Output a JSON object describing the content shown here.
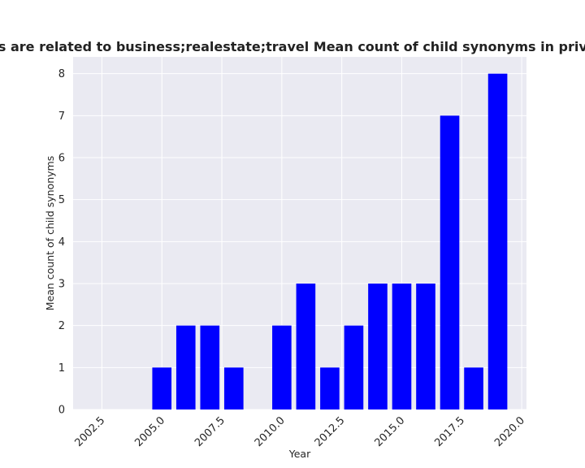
{
  "chart_data": {
    "type": "bar",
    "title": "Categories are related to business;realestate;travel Mean count of child synonyms in privacy policies",
    "xlabel": "Year",
    "ylabel": "Mean count of child synonyms",
    "x": [
      2005,
      2006,
      2007,
      2008,
      2010,
      2011,
      2012,
      2013,
      2014,
      2015,
      2016,
      2017,
      2018,
      2019
    ],
    "values": [
      1,
      2,
      2,
      1,
      2,
      3,
      1,
      2,
      3,
      3,
      3,
      7,
      1,
      8
    ],
    "xlim": [
      2001.3,
      2020.2
    ],
    "ylim": [
      0,
      8.4
    ],
    "xticks": [
      "2002.5",
      "2005.0",
      "2007.5",
      "2010.0",
      "2012.5",
      "2015.0",
      "2017.5",
      "2020.0"
    ],
    "yticks": [
      "0",
      "1",
      "2",
      "3",
      "4",
      "5",
      "6",
      "7",
      "8"
    ],
    "bar_color": "#0000ff",
    "background_color": "#eaeaf2",
    "grid": true
  }
}
